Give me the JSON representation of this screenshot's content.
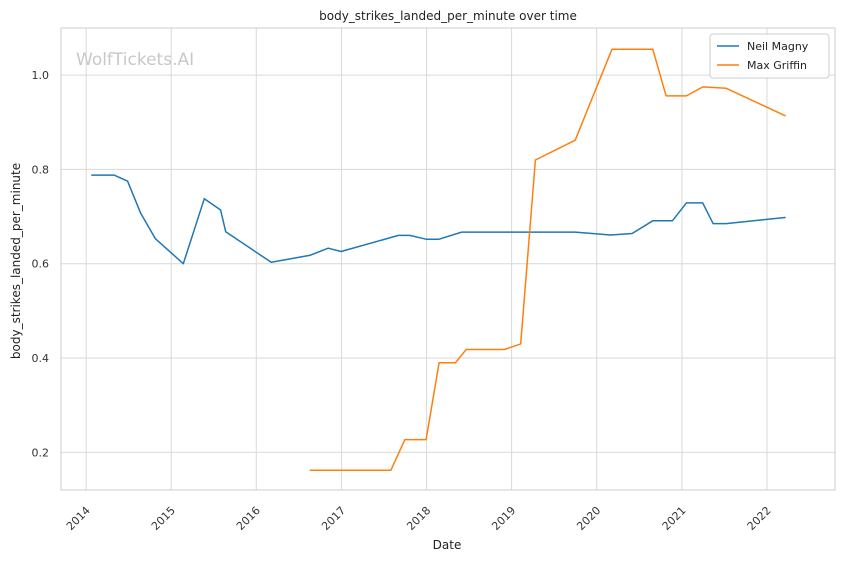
{
  "chart_data": {
    "type": "line",
    "title": "body_strikes_landed_per_minute over time",
    "xlabel": "Date",
    "ylabel": "body_strikes_landed_per_minute",
    "watermark": "WolfTickets.AI",
    "x_axis_type": "date",
    "xlim": [
      "2013-09-15",
      "2022-10-20"
    ],
    "ylim": [
      0.12,
      1.1
    ],
    "x_ticks": [
      "2014",
      "2015",
      "2016",
      "2017",
      "2018",
      "2019",
      "2020",
      "2021",
      "2022"
    ],
    "y_ticks": [
      0.2,
      0.4,
      0.6,
      0.8,
      1.0
    ],
    "y_tick_labels": [
      "0.2",
      "0.4",
      "0.6",
      "0.8",
      "1.0"
    ],
    "grid": true,
    "legend_position": "top-right",
    "series": [
      {
        "name": "Neil Magny",
        "color": "#1f77b4",
        "points": [
          [
            "2014-01-25",
            0.788
          ],
          [
            "2014-05-01",
            0.788
          ],
          [
            "2014-06-28",
            0.775
          ],
          [
            "2014-08-23",
            0.707
          ],
          [
            "2014-10-25",
            0.653
          ],
          [
            "2015-02-22",
            0.6
          ],
          [
            "2015-05-23",
            0.738
          ],
          [
            "2015-08-01",
            0.714
          ],
          [
            "2015-08-23",
            0.668
          ],
          [
            "2016-03-05",
            0.603
          ],
          [
            "2016-08-20",
            0.618
          ],
          [
            "2016-11-05",
            0.633
          ],
          [
            "2016-12-30",
            0.626
          ],
          [
            "2017-09-02",
            0.66
          ],
          [
            "2017-10-21",
            0.66
          ],
          [
            "2017-12-30",
            0.652
          ],
          [
            "2018-02-24",
            0.652
          ],
          [
            "2018-06-01",
            0.667
          ],
          [
            "2019-10-01",
            0.667
          ],
          [
            "2020-03-01",
            0.661
          ],
          [
            "2020-06-01",
            0.664
          ],
          [
            "2020-08-29",
            0.691
          ],
          [
            "2020-11-21",
            0.691
          ],
          [
            "2021-01-20",
            0.729
          ],
          [
            "2021-03-31",
            0.729
          ],
          [
            "2021-05-15",
            0.685
          ],
          [
            "2021-07-10",
            0.685
          ],
          [
            "2022-03-20",
            0.698
          ]
        ]
      },
      {
        "name": "Max Griffin",
        "color": "#ff7f0e",
        "points": [
          [
            "2016-08-20",
            0.162
          ],
          [
            "2017-08-01",
            0.162
          ],
          [
            "2017-09-30",
            0.227
          ],
          [
            "2017-12-30",
            0.227
          ],
          [
            "2018-02-24",
            0.39
          ],
          [
            "2018-05-05",
            0.39
          ],
          [
            "2018-06-20",
            0.418
          ],
          [
            "2018-12-01",
            0.418
          ],
          [
            "2019-02-09",
            0.43
          ],
          [
            "2019-04-13",
            0.82
          ],
          [
            "2019-10-01",
            0.862
          ],
          [
            "2020-03-07",
            1.055
          ],
          [
            "2020-08-29",
            1.055
          ],
          [
            "2020-10-25",
            0.956
          ],
          [
            "2021-01-20",
            0.956
          ],
          [
            "2021-04-01",
            0.975
          ],
          [
            "2021-07-10",
            0.972
          ],
          [
            "2022-03-20",
            0.914
          ]
        ]
      }
    ]
  }
}
